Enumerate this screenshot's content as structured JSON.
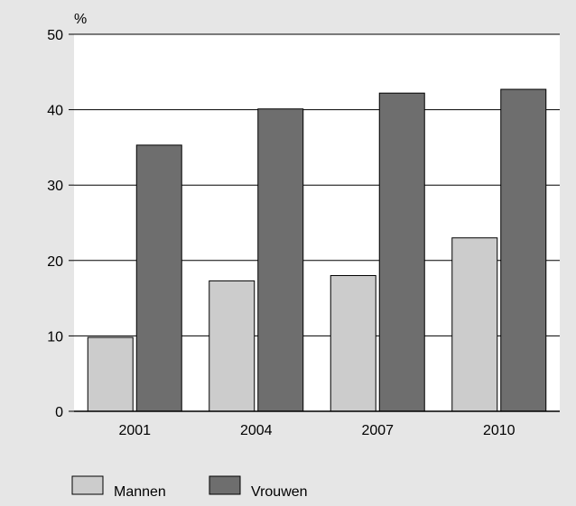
{
  "chart_data": {
    "type": "bar",
    "unit_label": "%",
    "categories": [
      "2001",
      "2004",
      "2007",
      "2010"
    ],
    "series": [
      {
        "name": "Mannen",
        "values": [
          9.8,
          17.3,
          18.0,
          23.0
        ],
        "color": "#cccccc"
      },
      {
        "name": "Vrouwen",
        "values": [
          35.3,
          40.1,
          42.2,
          42.7
        ],
        "color": "#6e6e6e"
      }
    ],
    "ylim": [
      0,
      50
    ],
    "yticks": [
      0,
      10,
      20,
      30,
      40,
      50
    ],
    "grid": true,
    "legend_position": "bottom-left",
    "background_color": "#e6e6e6",
    "plot_background_color": "#ffffff"
  }
}
